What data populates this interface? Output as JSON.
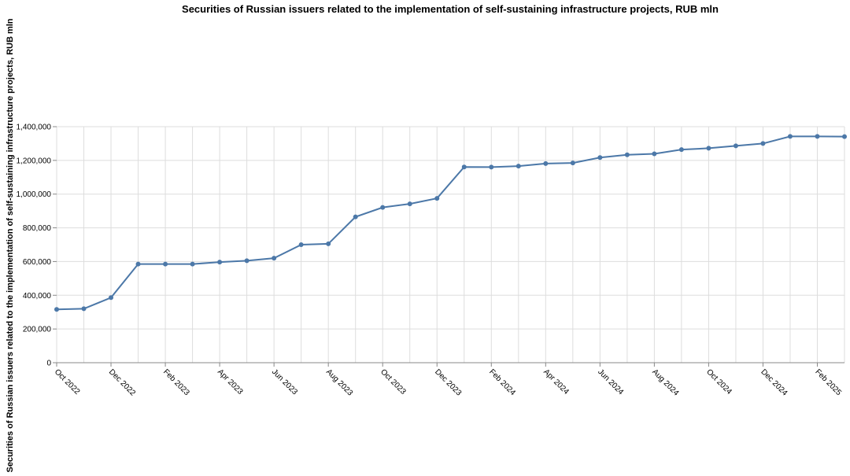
{
  "chart_data": {
    "type": "line",
    "title": "Securities of Russian issuers related to the implementation of self-sustaining infrastructure projects, RUB mln",
    "ylabel": "Securities of Russian issuers related to the implementation of self-sustaining infrastructure projects, RUB mln",
    "xlabel": "",
    "ylim": [
      0,
      1400000
    ],
    "y_ticks": [
      {
        "value": 0,
        "label": "0"
      },
      {
        "value": 200000,
        "label": "200,000"
      },
      {
        "value": 400000,
        "label": "400,000"
      },
      {
        "value": 600000,
        "label": "600,000"
      },
      {
        "value": 800000,
        "label": "800,000"
      },
      {
        "value": 1000000,
        "label": "1,000,000"
      },
      {
        "value": 1200000,
        "label": "1,200,000"
      },
      {
        "value": 1400000,
        "label": "1,400,000"
      }
    ],
    "x_ticks": [
      {
        "date": "2022-10",
        "label": "Oct 2022"
      },
      {
        "date": "2022-12",
        "label": "Dec 2022"
      },
      {
        "date": "2023-02",
        "label": "Feb 2023"
      },
      {
        "date": "2023-04",
        "label": "Apr 2023"
      },
      {
        "date": "2023-06",
        "label": "Jun 2023"
      },
      {
        "date": "2023-08",
        "label": "Aug 2023"
      },
      {
        "date": "2023-10",
        "label": "Oct 2023"
      },
      {
        "date": "2023-12",
        "label": "Dec 2023"
      },
      {
        "date": "2024-02",
        "label": "Feb 2024"
      },
      {
        "date": "2024-04",
        "label": "Apr 2024"
      },
      {
        "date": "2024-06",
        "label": "Jun 2024"
      },
      {
        "date": "2024-08",
        "label": "Aug 2024"
      },
      {
        "date": "2024-10",
        "label": "Oct 2024"
      },
      {
        "date": "2024-12",
        "label": "Dec 2024"
      },
      {
        "date": "2025-02",
        "label": "Feb 2025"
      }
    ],
    "x_range": [
      "2022-10",
      "2025-03"
    ],
    "grid": true,
    "series": [
      {
        "color": "#4c78a8",
        "points": [
          {
            "x": "2022-10",
            "y": 316000
          },
          {
            "x": "2022-11",
            "y": 320000
          },
          {
            "x": "2022-12",
            "y": 386000
          },
          {
            "x": "2023-01",
            "y": 585000
          },
          {
            "x": "2023-02",
            "y": 585000
          },
          {
            "x": "2023-03",
            "y": 585000
          },
          {
            "x": "2023-04",
            "y": 597000
          },
          {
            "x": "2023-05",
            "y": 605000
          },
          {
            "x": "2023-06",
            "y": 620000
          },
          {
            "x": "2023-07",
            "y": 700000
          },
          {
            "x": "2023-08",
            "y": 705000
          },
          {
            "x": "2023-09",
            "y": 865000
          },
          {
            "x": "2023-10",
            "y": 921000
          },
          {
            "x": "2023-11",
            "y": 942000
          },
          {
            "x": "2023-12",
            "y": 975000
          },
          {
            "x": "2024-01",
            "y": 1161000
          },
          {
            "x": "2024-02",
            "y": 1160000
          },
          {
            "x": "2024-03",
            "y": 1166000
          },
          {
            "x": "2024-04",
            "y": 1181000
          },
          {
            "x": "2024-05",
            "y": 1185000
          },
          {
            "x": "2024-06",
            "y": 1217000
          },
          {
            "x": "2024-07",
            "y": 1233000
          },
          {
            "x": "2024-08",
            "y": 1239000
          },
          {
            "x": "2024-09",
            "y": 1264000
          },
          {
            "x": "2024-10",
            "y": 1272000
          },
          {
            "x": "2024-11",
            "y": 1286000
          },
          {
            "x": "2024-12",
            "y": 1300000
          },
          {
            "x": "2025-01",
            "y": 1342000
          },
          {
            "x": "2025-02",
            "y": 1342000
          },
          {
            "x": "2025-03",
            "y": 1341000
          }
        ]
      }
    ]
  }
}
